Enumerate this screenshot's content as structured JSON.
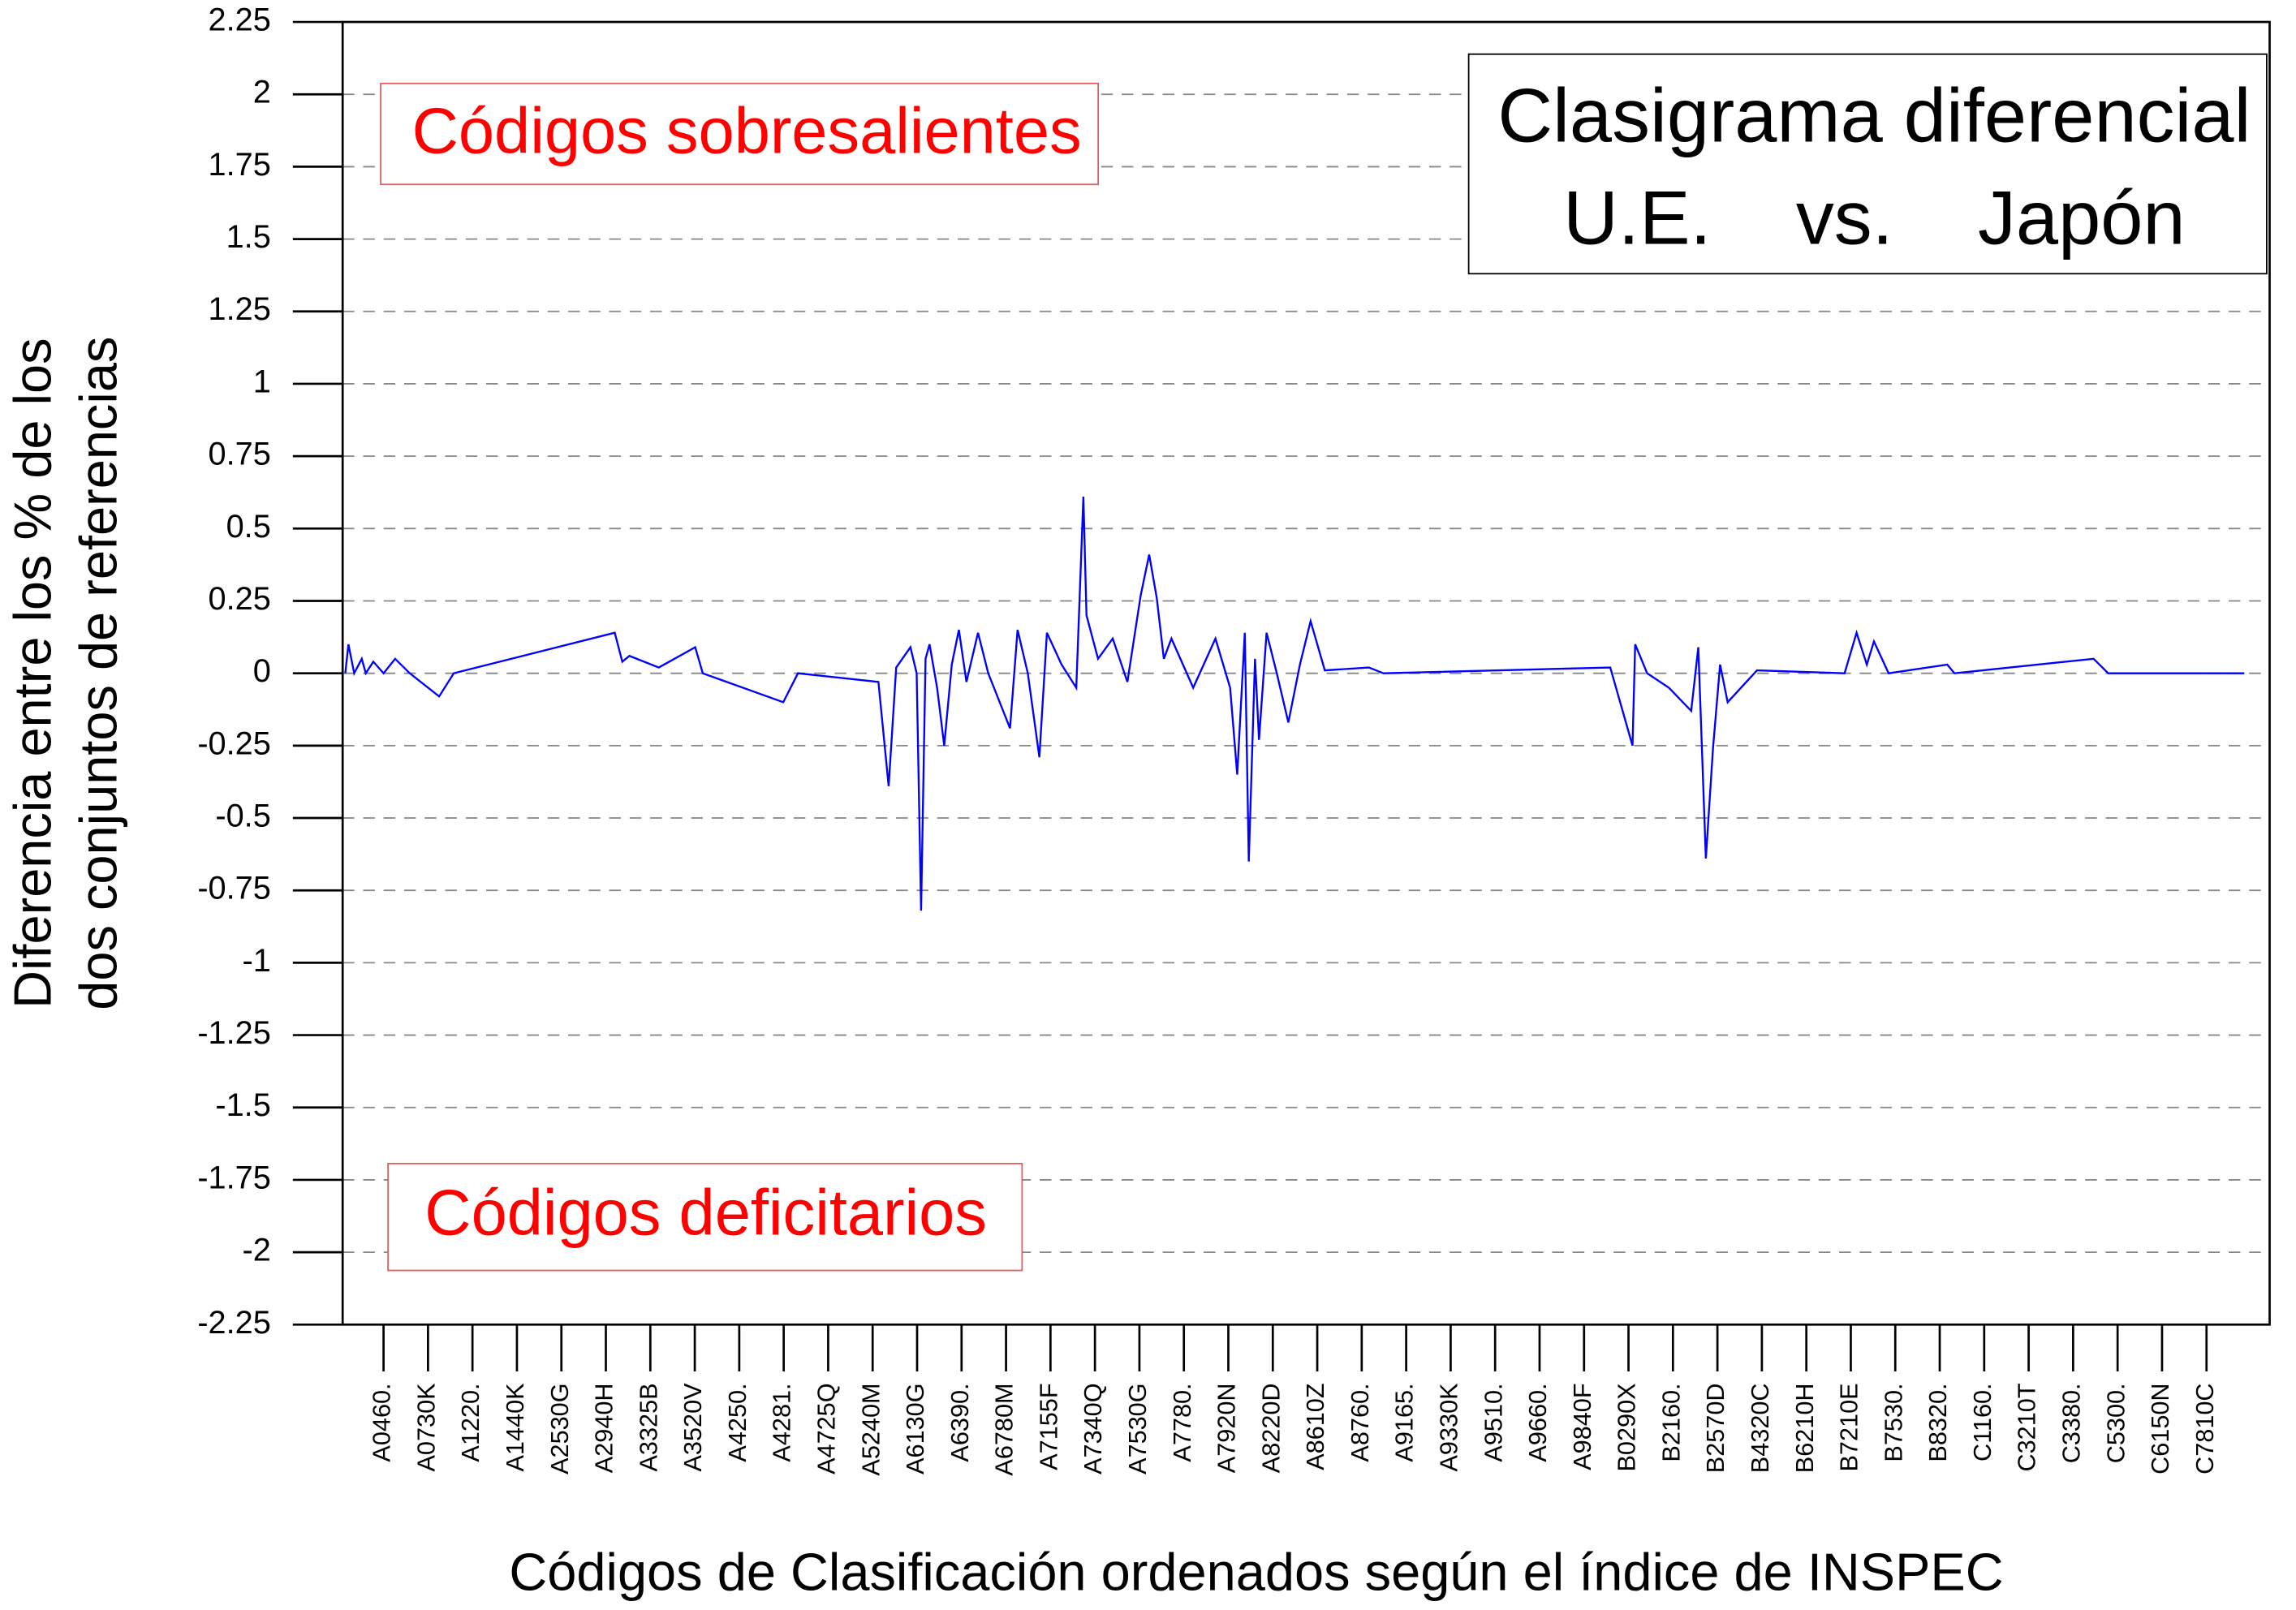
{
  "chart_data": {
    "type": "line",
    "title": [
      "Clasigrama diferencial",
      "U.E.    vs.    Japón"
    ],
    "y_label": [
      "Diferencia entre los % de los",
      "dos conjuntos de referencias"
    ],
    "x_label": "Códigos de Clasificación ordenados según el índice de INSPEC",
    "annotations": [
      "Códigos sobresalientes",
      "Códigos deficitarios"
    ],
    "color": "#0000ff",
    "grid": true,
    "ylim": [
      -2.25,
      2.25
    ],
    "yticks": [
      2.25,
      2,
      1.75,
      1.5,
      1.25,
      1,
      0.75,
      0.5,
      0.25,
      0,
      -0.25,
      -0.5,
      -0.75,
      -1,
      -1.25,
      -1.5,
      -1.75,
      -2,
      -2.25
    ],
    "xlim": [
      8,
      4342
    ],
    "xticks": [
      {
        "value": 100,
        "label": "A0460."
      },
      {
        "value": 200,
        "label": "A0730K"
      },
      {
        "value": 300,
        "label": "A1220."
      },
      {
        "value": 400,
        "label": "A1440K"
      },
      {
        "value": 500,
        "label": "A2530G"
      },
      {
        "value": 600,
        "label": "A2940H"
      },
      {
        "value": 700,
        "label": "A3325B"
      },
      {
        "value": 800,
        "label": "A3520V"
      },
      {
        "value": 900,
        "label": "A4250."
      },
      {
        "value": 1000,
        "label": "A4281."
      },
      {
        "value": 1100,
        "label": "A4725Q"
      },
      {
        "value": 1200,
        "label": "A5240M"
      },
      {
        "value": 1300,
        "label": "A6130G"
      },
      {
        "value": 1400,
        "label": "A6390."
      },
      {
        "value": 1500,
        "label": "A6780M"
      },
      {
        "value": 1600,
        "label": "A7155F"
      },
      {
        "value": 1700,
        "label": "A7340Q"
      },
      {
        "value": 1800,
        "label": "A7530G"
      },
      {
        "value": 1900,
        "label": "A7780."
      },
      {
        "value": 2000,
        "label": "A7920N"
      },
      {
        "value": 2100,
        "label": "A8220D"
      },
      {
        "value": 2200,
        "label": "A8610Z"
      },
      {
        "value": 2300,
        "label": "A8760."
      },
      {
        "value": 2400,
        "label": "A9165."
      },
      {
        "value": 2500,
        "label": "A9330K"
      },
      {
        "value": 2600,
        "label": "A9510."
      },
      {
        "value": 2700,
        "label": "A9660."
      },
      {
        "value": 2800,
        "label": "A9840F"
      },
      {
        "value": 2900,
        "label": "B0290X"
      },
      {
        "value": 3000,
        "label": "B2160."
      },
      {
        "value": 3100,
        "label": "B2570D"
      },
      {
        "value": 3200,
        "label": "B4320C"
      },
      {
        "value": 3300,
        "label": "B6210H"
      },
      {
        "value": 3400,
        "label": "B7210E"
      },
      {
        "value": 3500,
        "label": "B7530."
      },
      {
        "value": 3600,
        "label": "B8320."
      },
      {
        "value": 3700,
        "label": "C1160."
      },
      {
        "value": 3800,
        "label": "C3210T"
      },
      {
        "value": 3900,
        "label": "C3380."
      },
      {
        "value": 4000,
        "label": "C5300."
      },
      {
        "value": 4100,
        "label": "C6150N"
      },
      {
        "value": 4200,
        "label": "C7810C"
      }
    ],
    "x": [
      14,
      21,
      34,
      51,
      60,
      77,
      100,
      126,
      159,
      225,
      258,
      620,
      637,
      653,
      719,
      801,
      818,
      999,
      1032,
      1213,
      1236,
      1253,
      1285,
      1299,
      1309,
      1319,
      1328,
      1345,
      1361,
      1378,
      1394,
      1411,
      1437,
      1460,
      1509,
      1526,
      1549,
      1575,
      1592,
      1625,
      1658,
      1674,
      1681,
      1707,
      1740,
      1773,
      1803,
      1822,
      1839,
      1855,
      1872,
      1921,
      1971,
      2004,
      2020,
      2037,
      2046,
      2060,
      2069,
      2086,
      2109,
      2135,
      2161,
      2185,
      2217,
      2316,
      2349,
      2859,
      2909,
      2915,
      2942,
      2991,
      3041,
      3057,
      3074,
      3090,
      3106,
      3123,
      3189,
      3386,
      3413,
      3436,
      3452,
      3485,
      3617,
      3633,
      3946,
      3979,
      4285
    ],
    "values": [
      0,
      0.1,
      0,
      0.05,
      0,
      0.04,
      0,
      0.05,
      0,
      -0.08,
      0,
      0.14,
      0.04,
      0.06,
      0.02,
      0.09,
      0,
      -0.1,
      0,
      -0.03,
      -0.39,
      0.02,
      0.09,
      0,
      -0.82,
      0.05,
      0.1,
      -0.05,
      -0.25,
      0.03,
      0.15,
      -0.03,
      0.14,
      0,
      -0.19,
      0.15,
      0,
      -0.29,
      0.14,
      0.03,
      -0.05,
      0.61,
      0.2,
      0.05,
      0.12,
      -0.03,
      0.27,
      0.41,
      0.26,
      0.05,
      0.12,
      -0.05,
      0.12,
      -0.05,
      -0.35,
      0.14,
      -0.65,
      0.05,
      -0.23,
      0.14,
      0,
      -0.17,
      0.03,
      0.18,
      0.01,
      0.02,
      0,
      0.02,
      -0.25,
      0.1,
      0,
      -0.05,
      -0.13,
      0.09,
      -0.64,
      -0.26,
      0.03,
      -0.1,
      0.01,
      0,
      0.14,
      0.03,
      0.11,
      0,
      0.03,
      0,
      0.05,
      0,
      0
    ]
  }
}
